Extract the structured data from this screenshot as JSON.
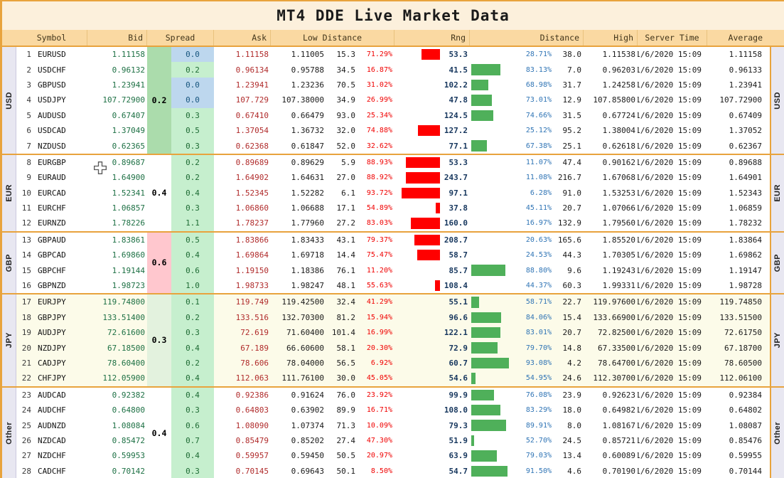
{
  "title": "MT4 DDE Live Market Data",
  "header": {
    "symbol": "Symbol",
    "bid": "Bid",
    "spread": "Spread",
    "ask": "Ask",
    "low_distance": "Low Distance",
    "rng": "Rng",
    "distance": "Distance",
    "high": "High",
    "server_time": "Server Time",
    "average": "Average"
  },
  "colors": {
    "accent_orange": "#E8A33D",
    "title_bg": "#FCF0DC",
    "header_bg": "#FAD9A2",
    "strip_bg": "#E8E7F1",
    "bid_text": "#1D7044",
    "ask_text": "#B02B2B",
    "rng_text": "#17375E",
    "low_pct_text": "#F00000",
    "high_pct_text": "#2F74B5",
    "bar_red": "#FF0000",
    "bar_green": "#4FB05A",
    "spread_green_bg": "#C6EFCE",
    "spread_green_text": "#1E6B34",
    "spread_blue_bg": "#BDD7EE",
    "spread_blue_text": "#17557E",
    "jpy_row_bg": "#FCFBE9"
  },
  "groups": [
    {
      "label": "USD",
      "avg_spread": "0.2",
      "avg_spread_bg": "#ABDCAC",
      "row_tint": false,
      "rows": [
        {
          "num": "1",
          "symbol": "EURUSD",
          "bid": "1.11158",
          "spread": "0.0",
          "ask": "1.11158",
          "low": "1.11005",
          "low_pips": "15.3",
          "low_pct": "71.29%",
          "rng": "53.3",
          "high_pct": "28.71%",
          "high_pips": "38.0",
          "high": "1.11538",
          "time": "1/6/2020 15:09",
          "avg": "1.11158"
        },
        {
          "num": "2",
          "symbol": "USDCHF",
          "bid": "0.96132",
          "spread": "0.2",
          "ask": "0.96134",
          "low": "0.95788",
          "low_pips": "34.5",
          "low_pct": "16.87%",
          "rng": "41.5",
          "high_pct": "83.13%",
          "high_pips": "7.0",
          "high": "0.96203",
          "time": "1/6/2020 15:09",
          "avg": "0.96133"
        },
        {
          "num": "3",
          "symbol": "GBPUSD",
          "bid": "1.23941",
          "spread": "0.0",
          "ask": "1.23941",
          "low": "1.23236",
          "low_pips": "70.5",
          "low_pct": "31.02%",
          "rng": "102.2",
          "high_pct": "68.98%",
          "high_pips": "31.7",
          "high": "1.24258",
          "time": "1/6/2020 15:09",
          "avg": "1.23941"
        },
        {
          "num": "4",
          "symbol": "USDJPY",
          "bid": "107.72900",
          "spread": "0.0",
          "ask": "107.729",
          "low": "107.38000",
          "low_pips": "34.9",
          "low_pct": "26.99%",
          "rng": "47.8",
          "high_pct": "73.01%",
          "high_pips": "12.9",
          "high": "107.85800",
          "time": "1/6/2020 15:09",
          "avg": "107.72900"
        },
        {
          "num": "5",
          "symbol": "AUDUSD",
          "bid": "0.67407",
          "spread": "0.3",
          "ask": "0.67410",
          "low": "0.66479",
          "low_pips": "93.0",
          "low_pct": "25.34%",
          "rng": "124.5",
          "high_pct": "74.66%",
          "high_pips": "31.5",
          "high": "0.67724",
          "time": "1/6/2020 15:09",
          "avg": "0.67409"
        },
        {
          "num": "6",
          "symbol": "USDCAD",
          "bid": "1.37049",
          "spread": "0.5",
          "ask": "1.37054",
          "low": "1.36732",
          "low_pips": "32.0",
          "low_pct": "74.88%",
          "rng": "127.2",
          "high_pct": "25.12%",
          "high_pips": "95.2",
          "high": "1.38004",
          "time": "1/6/2020 15:09",
          "avg": "1.37052"
        },
        {
          "num": "7",
          "symbol": "NZDUSD",
          "bid": "0.62365",
          "spread": "0.3",
          "ask": "0.62368",
          "low": "0.61847",
          "low_pips": "52.0",
          "low_pct": "32.62%",
          "rng": "77.1",
          "high_pct": "67.38%",
          "high_pips": "25.1",
          "high": "0.62618",
          "time": "1/6/2020 15:09",
          "avg": "0.62367"
        }
      ]
    },
    {
      "label": "EUR",
      "avg_spread": "0.4",
      "avg_spread_bg": "#FFFFFF",
      "row_tint": false,
      "rows": [
        {
          "num": "8",
          "symbol": "EURGBP",
          "bid": "0.89687",
          "spread": "0.2",
          "ask": "0.89689",
          "low": "0.89629",
          "low_pips": "5.9",
          "low_pct": "88.93%",
          "rng": "53.3",
          "high_pct": "11.07%",
          "high_pips": "47.4",
          "high": "0.90162",
          "time": "1/6/2020 15:09",
          "avg": "0.89688"
        },
        {
          "num": "9",
          "symbol": "EURAUD",
          "bid": "1.64900",
          "spread": "0.2",
          "ask": "1.64902",
          "low": "1.64631",
          "low_pips": "27.0",
          "low_pct": "88.92%",
          "rng": "243.7",
          "high_pct": "11.08%",
          "high_pips": "216.7",
          "high": "1.67068",
          "time": "1/6/2020 15:09",
          "avg": "1.64901"
        },
        {
          "num": "10",
          "symbol": "EURCAD",
          "bid": "1.52341",
          "spread": "0.4",
          "ask": "1.52345",
          "low": "1.52282",
          "low_pips": "6.1",
          "low_pct": "93.72%",
          "rng": "97.1",
          "high_pct": "6.28%",
          "high_pips": "91.0",
          "high": "1.53253",
          "time": "1/6/2020 15:09",
          "avg": "1.52343"
        },
        {
          "num": "11",
          "symbol": "EURCHF",
          "bid": "1.06857",
          "spread": "0.3",
          "ask": "1.06860",
          "low": "1.06688",
          "low_pips": "17.1",
          "low_pct": "54.89%",
          "rng": "37.8",
          "high_pct": "45.11%",
          "high_pips": "20.7",
          "high": "1.07066",
          "time": "1/6/2020 15:09",
          "avg": "1.06859"
        },
        {
          "num": "12",
          "symbol": "EURNZD",
          "bid": "1.78226",
          "spread": "1.1",
          "ask": "1.78237",
          "low": "1.77960",
          "low_pips": "27.2",
          "low_pct": "83.03%",
          "rng": "160.0",
          "high_pct": "16.97%",
          "high_pips": "132.9",
          "high": "1.79560",
          "time": "1/6/2020 15:09",
          "avg": "1.78232"
        }
      ]
    },
    {
      "label": "GBP",
      "avg_spread": "0.6",
      "avg_spread_bg": "#FFC7CE",
      "row_tint": false,
      "rows": [
        {
          "num": "13",
          "symbol": "GBPAUD",
          "bid": "1.83861",
          "spread": "0.5",
          "ask": "1.83866",
          "low": "1.83433",
          "low_pips": "43.1",
          "low_pct": "79.37%",
          "rng": "208.7",
          "high_pct": "20.63%",
          "high_pips": "165.6",
          "high": "1.85520",
          "time": "1/6/2020 15:09",
          "avg": "1.83864"
        },
        {
          "num": "14",
          "symbol": "GBPCAD",
          "bid": "1.69860",
          "spread": "0.4",
          "ask": "1.69864",
          "low": "1.69718",
          "low_pips": "14.4",
          "low_pct": "75.47%",
          "rng": "58.7",
          "high_pct": "24.53%",
          "high_pips": "44.3",
          "high": "1.70305",
          "time": "1/6/2020 15:09",
          "avg": "1.69862"
        },
        {
          "num": "15",
          "symbol": "GBPCHF",
          "bid": "1.19144",
          "spread": "0.6",
          "ask": "1.19150",
          "low": "1.18386",
          "low_pips": "76.1",
          "low_pct": "11.20%",
          "rng": "85.7",
          "high_pct": "88.80%",
          "high_pips": "9.6",
          "high": "1.19243",
          "time": "1/6/2020 15:09",
          "avg": "1.19147"
        },
        {
          "num": "16",
          "symbol": "GBPNZD",
          "bid": "1.98723",
          "spread": "1.0",
          "ask": "1.98733",
          "low": "1.98247",
          "low_pips": "48.1",
          "low_pct": "55.63%",
          "rng": "108.4",
          "high_pct": "44.37%",
          "high_pips": "60.3",
          "high": "1.99331",
          "time": "1/6/2020 15:09",
          "avg": "1.98728"
        }
      ]
    },
    {
      "label": "JPY",
      "avg_spread": "0.3",
      "avg_spread_bg": "#E3F2DE",
      "row_tint": true,
      "rows": [
        {
          "num": "17",
          "symbol": "EURJPY",
          "bid": "119.74800",
          "spread": "0.1",
          "ask": "119.749",
          "low": "119.42500",
          "low_pips": "32.4",
          "low_pct": "41.29%",
          "rng": "55.1",
          "high_pct": "58.71%",
          "high_pips": "22.7",
          "high": "119.97600",
          "time": "1/6/2020 15:09",
          "avg": "119.74850"
        },
        {
          "num": "18",
          "symbol": "GBPJPY",
          "bid": "133.51400",
          "spread": "0.2",
          "ask": "133.516",
          "low": "132.70300",
          "low_pips": "81.2",
          "low_pct": "15.94%",
          "rng": "96.6",
          "high_pct": "84.06%",
          "high_pips": "15.4",
          "high": "133.66900",
          "time": "1/6/2020 15:09",
          "avg": "133.51500"
        },
        {
          "num": "19",
          "symbol": "AUDJPY",
          "bid": "72.61600",
          "spread": "0.3",
          "ask": "72.619",
          "low": "71.60400",
          "low_pips": "101.4",
          "low_pct": "16.99%",
          "rng": "122.1",
          "high_pct": "83.01%",
          "high_pips": "20.7",
          "high": "72.82500",
          "time": "1/6/2020 15:09",
          "avg": "72.61750"
        },
        {
          "num": "20",
          "symbol": "NZDJPY",
          "bid": "67.18500",
          "spread": "0.4",
          "ask": "67.189",
          "low": "66.60600",
          "low_pips": "58.1",
          "low_pct": "20.30%",
          "rng": "72.9",
          "high_pct": "79.70%",
          "high_pips": "14.8",
          "high": "67.33500",
          "time": "1/6/2020 15:09",
          "avg": "67.18700"
        },
        {
          "num": "21",
          "symbol": "CADJPY",
          "bid": "78.60400",
          "spread": "0.2",
          "ask": "78.606",
          "low": "78.04000",
          "low_pips": "56.5",
          "low_pct": "6.92%",
          "rng": "60.7",
          "high_pct": "93.08%",
          "high_pips": "4.2",
          "high": "78.64700",
          "time": "1/6/2020 15:09",
          "avg": "78.60500"
        },
        {
          "num": "22",
          "symbol": "CHFJPY",
          "bid": "112.05900",
          "spread": "0.4",
          "ask": "112.063",
          "low": "111.76100",
          "low_pips": "30.0",
          "low_pct": "45.05%",
          "rng": "54.6",
          "high_pct": "54.95%",
          "high_pips": "24.6",
          "high": "112.30700",
          "time": "1/6/2020 15:09",
          "avg": "112.06100"
        }
      ]
    },
    {
      "label": "Other",
      "avg_spread": "0.4",
      "avg_spread_bg": "#FFFFFF",
      "row_tint": false,
      "rows": [
        {
          "num": "23",
          "symbol": "AUDCAD",
          "bid": "0.92382",
          "spread": "0.4",
          "ask": "0.92386",
          "low": "0.91624",
          "low_pips": "76.0",
          "low_pct": "23.92%",
          "rng": "99.9",
          "high_pct": "76.08%",
          "high_pips": "23.9",
          "high": "0.92623",
          "time": "1/6/2020 15:09",
          "avg": "0.92384"
        },
        {
          "num": "24",
          "symbol": "AUDCHF",
          "bid": "0.64800",
          "spread": "0.3",
          "ask": "0.64803",
          "low": "0.63902",
          "low_pips": "89.9",
          "low_pct": "16.71%",
          "rng": "108.0",
          "high_pct": "83.29%",
          "high_pips": "18.0",
          "high": "0.64982",
          "time": "1/6/2020 15:09",
          "avg": "0.64802"
        },
        {
          "num": "25",
          "symbol": "AUDNZD",
          "bid": "1.08084",
          "spread": "0.6",
          "ask": "1.08090",
          "low": "1.07374",
          "low_pips": "71.3",
          "low_pct": "10.09%",
          "rng": "79.3",
          "high_pct": "89.91%",
          "high_pips": "8.0",
          "high": "1.08167",
          "time": "1/6/2020 15:09",
          "avg": "1.08087"
        },
        {
          "num": "26",
          "symbol": "NZDCAD",
          "bid": "0.85472",
          "spread": "0.7",
          "ask": "0.85479",
          "low": "0.85202",
          "low_pips": "27.4",
          "low_pct": "47.30%",
          "rng": "51.9",
          "high_pct": "52.70%",
          "high_pips": "24.5",
          "high": "0.85721",
          "time": "1/6/2020 15:09",
          "avg": "0.85476"
        },
        {
          "num": "27",
          "symbol": "NZDCHF",
          "bid": "0.59953",
          "spread": "0.4",
          "ask": "0.59957",
          "low": "0.59450",
          "low_pips": "50.5",
          "low_pct": "20.97%",
          "rng": "63.9",
          "high_pct": "79.03%",
          "high_pips": "13.4",
          "high": "0.60089",
          "time": "1/6/2020 15:09",
          "avg": "0.59955"
        },
        {
          "num": "28",
          "symbol": "CADCHF",
          "bid": "0.70142",
          "spread": "0.3",
          "ask": "0.70145",
          "low": "0.69643",
          "low_pips": "50.1",
          "low_pct": "8.50%",
          "rng": "54.7",
          "high_pct": "91.50%",
          "high_pips": "4.6",
          "high": "0.70190",
          "time": "1/6/2020 15:09",
          "avg": "0.70144"
        }
      ]
    }
  ]
}
